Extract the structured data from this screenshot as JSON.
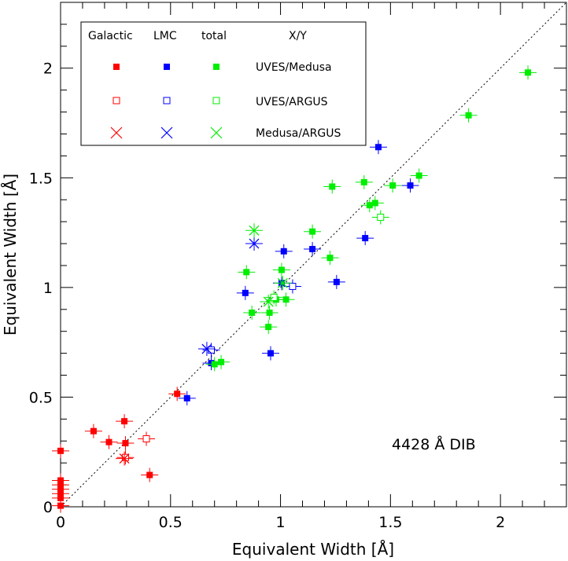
{
  "chart_data": {
    "type": "scatter",
    "title": "",
    "xlabel": "Equivalent Width [Å]",
    "ylabel": "Equivalent Width [Å]",
    "xlim": [
      0,
      2.3
    ],
    "ylim": [
      0,
      2.3
    ],
    "x_ticks": [
      0,
      0.5,
      1,
      1.5,
      2
    ],
    "y_ticks": [
      0,
      0.5,
      1,
      1.5,
      2
    ],
    "x_tick_labels": [
      "0",
      "0.5",
      "1",
      "1.5",
      "2"
    ],
    "y_tick_labels": [
      "0",
      "0.5",
      "1",
      "1.5",
      "2"
    ],
    "grid": false,
    "one_to_one_line": true,
    "annotation": "4428 Å DIB",
    "legend": {
      "placement": "top-left",
      "column_headers": [
        "Galactic",
        "LMC",
        "total",
        "X/Y"
      ],
      "rows": [
        {
          "label": "UVES/Medusa",
          "marker": "filled-square"
        },
        {
          "label": "UVES/ARGUS",
          "marker": "open-square"
        },
        {
          "label": "Medusa/ARGUS",
          "marker": "cross"
        }
      ],
      "colors": {
        "Galactic": "#ff0000",
        "LMC": "#0000ff",
        "total": "#00ee00"
      }
    },
    "series": [
      {
        "group": "Galactic",
        "pair": "UVES/Medusa",
        "marker": "filled-square",
        "color": "#ff0000",
        "points": [
          {
            "x": 0.0,
            "y": 0.255
          },
          {
            "x": 0.0,
            "y": 0.12
          },
          {
            "x": 0.0,
            "y": 0.1
          },
          {
            "x": 0.0,
            "y": 0.08
          },
          {
            "x": 0.0,
            "y": 0.06
          },
          {
            "x": 0.0,
            "y": 0.04
          },
          {
            "x": 0.0,
            "y": 0.005
          },
          {
            "x": 0.15,
            "y": 0.345
          },
          {
            "x": 0.22,
            "y": 0.295
          },
          {
            "x": 0.29,
            "y": 0.39
          },
          {
            "x": 0.295,
            "y": 0.29
          },
          {
            "x": 0.405,
            "y": 0.145
          },
          {
            "x": 0.53,
            "y": 0.515
          }
        ]
      },
      {
        "group": "Galactic",
        "pair": "UVES/ARGUS",
        "marker": "open-square",
        "color": "#ff0000",
        "points": [
          {
            "x": 0.39,
            "y": 0.31
          },
          {
            "x": 0.295,
            "y": 0.225
          }
        ]
      },
      {
        "group": "Galactic",
        "pair": "Medusa/ARGUS",
        "marker": "cross",
        "color": "#ff0000",
        "points": [
          {
            "x": 0.29,
            "y": 0.22
          }
        ]
      },
      {
        "group": "LMC",
        "pair": "UVES/Medusa",
        "marker": "filled-square",
        "color": "#0000ff",
        "points": [
          {
            "x": 0.575,
            "y": 0.495
          },
          {
            "x": 0.685,
            "y": 0.655
          },
          {
            "x": 0.84,
            "y": 0.975
          },
          {
            "x": 0.955,
            "y": 0.7
          },
          {
            "x": 1.005,
            "y": 1.02
          },
          {
            "x": 1.015,
            "y": 1.165
          },
          {
            "x": 1.145,
            "y": 1.175
          },
          {
            "x": 1.255,
            "y": 1.025
          },
          {
            "x": 1.385,
            "y": 1.225
          },
          {
            "x": 1.445,
            "y": 1.64
          },
          {
            "x": 1.59,
            "y": 1.465
          }
        ]
      },
      {
        "group": "LMC",
        "pair": "UVES/ARGUS",
        "marker": "open-square",
        "color": "#0000ff",
        "points": [
          {
            "x": 0.685,
            "y": 0.715
          },
          {
            "x": 1.055,
            "y": 1.005
          }
        ]
      },
      {
        "group": "LMC",
        "pair": "Medusa/ARGUS",
        "marker": "cross",
        "color": "#0000ff",
        "points": [
          {
            "x": 0.665,
            "y": 0.72
          },
          {
            "x": 0.88,
            "y": 1.2
          }
        ]
      },
      {
        "group": "total",
        "pair": "UVES/Medusa",
        "marker": "filled-square",
        "color": "#00ee00",
        "points": [
          {
            "x": 0.7,
            "y": 0.65
          },
          {
            "x": 0.73,
            "y": 0.66
          },
          {
            "x": 0.845,
            "y": 1.07
          },
          {
            "x": 0.87,
            "y": 0.885
          },
          {
            "x": 0.945,
            "y": 0.82
          },
          {
            "x": 0.95,
            "y": 0.885
          },
          {
            "x": 0.98,
            "y": 0.945
          },
          {
            "x": 1.005,
            "y": 1.08
          },
          {
            "x": 1.025,
            "y": 0.945
          },
          {
            "x": 1.145,
            "y": 1.255
          },
          {
            "x": 1.225,
            "y": 1.135
          },
          {
            "x": 1.235,
            "y": 1.46
          },
          {
            "x": 1.38,
            "y": 1.48
          },
          {
            "x": 1.405,
            "y": 1.375
          },
          {
            "x": 1.43,
            "y": 1.385
          },
          {
            "x": 1.51,
            "y": 1.465
          },
          {
            "x": 1.63,
            "y": 1.51
          },
          {
            "x": 1.855,
            "y": 1.785
          },
          {
            "x": 2.125,
            "y": 1.98
          }
        ]
      },
      {
        "group": "total",
        "pair": "UVES/ARGUS",
        "marker": "open-square",
        "color": "#00ee00",
        "points": [
          {
            "x": 1.455,
            "y": 1.32
          },
          {
            "x": 0.97,
            "y": 0.955
          }
        ]
      },
      {
        "group": "total",
        "pair": "Medusa/ARGUS",
        "marker": "cross",
        "color": "#00ee00",
        "points": [
          {
            "x": 0.88,
            "y": 1.26
          },
          {
            "x": 0.945,
            "y": 0.935
          },
          {
            "x": 1.01,
            "y": 1.02
          }
        ]
      }
    ]
  }
}
